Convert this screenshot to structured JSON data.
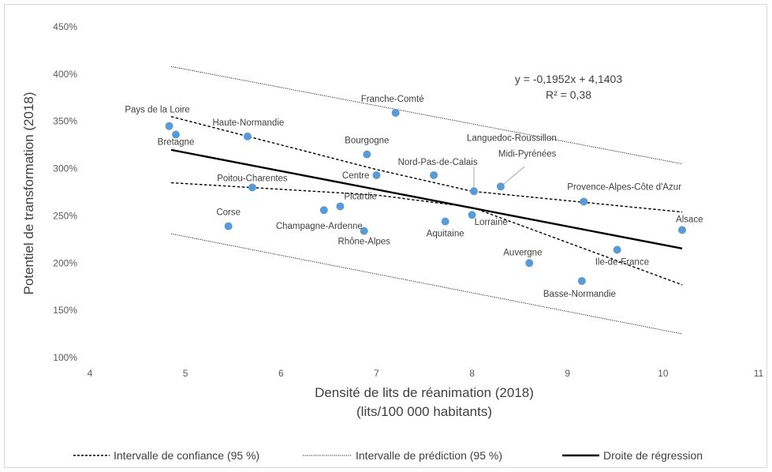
{
  "chart_data": {
    "type": "scatter",
    "xlabel_line1": "Densité de lits de réanimation (2018)",
    "xlabel_line2": "(lits/100 000 habitants)",
    "ylabel": "Potentiel de transformation (2018)",
    "xlim": [
      4,
      11
    ],
    "ylim": [
      100,
      450
    ],
    "x_ticks": [
      "4",
      "5",
      "6",
      "7",
      "8",
      "9",
      "10",
      "11"
    ],
    "y_ticks": [
      "100%",
      "150%",
      "200%",
      "250%",
      "300%",
      "350%",
      "400%",
      "450%"
    ],
    "grid": false,
    "equation_line1": "y = -0,1952x + 4,1403",
    "equation_line2": "R² = 0,38",
    "point_color": "#5b9bd5",
    "points": [
      {
        "name": "Pays de la Loire",
        "x": 4.83,
        "y": 345
      },
      {
        "name": "Bretagne",
        "x": 4.9,
        "y": 336
      },
      {
        "name": "Haute-Normandie",
        "x": 5.65,
        "y": 334
      },
      {
        "name": "Franche-Comté",
        "x": 7.2,
        "y": 359
      },
      {
        "name": "Bourgogne",
        "x": 6.9,
        "y": 315
      },
      {
        "name": "Centre",
        "x": 7.0,
        "y": 293
      },
      {
        "name": "Nord-Pas-de-Calais",
        "x": 7.6,
        "y": 293
      },
      {
        "name": "Languedoc-Roussillon",
        "x": 8.02,
        "y": 276
      },
      {
        "name": "Midi-Pyrénées",
        "x": 8.3,
        "y": 281
      },
      {
        "name": "Poitou-Charentes",
        "x": 5.7,
        "y": 280
      },
      {
        "name": "Picardie",
        "x": 6.62,
        "y": 260
      },
      {
        "name": "Champagne-Ardenne",
        "x": 6.45,
        "y": 256
      },
      {
        "name": "Corse",
        "x": 5.45,
        "y": 239
      },
      {
        "name": "Rhône-Alpes",
        "x": 6.87,
        "y": 234
      },
      {
        "name": "Aquitaine",
        "x": 7.72,
        "y": 244
      },
      {
        "name": "Lorraine",
        "x": 8.0,
        "y": 251
      },
      {
        "name": "Provence-Alpes-Côte d'Azur",
        "x": 9.17,
        "y": 265
      },
      {
        "name": "Alsace",
        "x": 10.2,
        "y": 235
      },
      {
        "name": "Ile-de-France",
        "x": 9.52,
        "y": 214
      },
      {
        "name": "Auvergne",
        "x": 8.6,
        "y": 200
      },
      {
        "name": "Basse-Normandie",
        "x": 9.15,
        "y": 181
      }
    ],
    "regression": {
      "name": "Droite de régression",
      "x": [
        4.85,
        10.2
      ],
      "y": [
        319.8,
        215.4
      ]
    },
    "confidence_upper": {
      "name": "Intervalle de confiance (95 %)",
      "x": [
        4.85,
        7.0,
        8.0,
        10.2
      ],
      "y": [
        355,
        299,
        276,
        254
      ]
    },
    "confidence_lower": {
      "x": [
        4.85,
        7.0,
        8.0,
        10.2
      ],
      "y": [
        285,
        272,
        259,
        177
      ]
    },
    "prediction_upper": {
      "name": "Intervalle de prédiction (95 %)",
      "x": [
        4.85,
        10.2
      ],
      "y": [
        408,
        305
      ]
    },
    "prediction_lower": {
      "x": [
        4.85,
        10.2
      ],
      "y": [
        231,
        125
      ]
    }
  }
}
